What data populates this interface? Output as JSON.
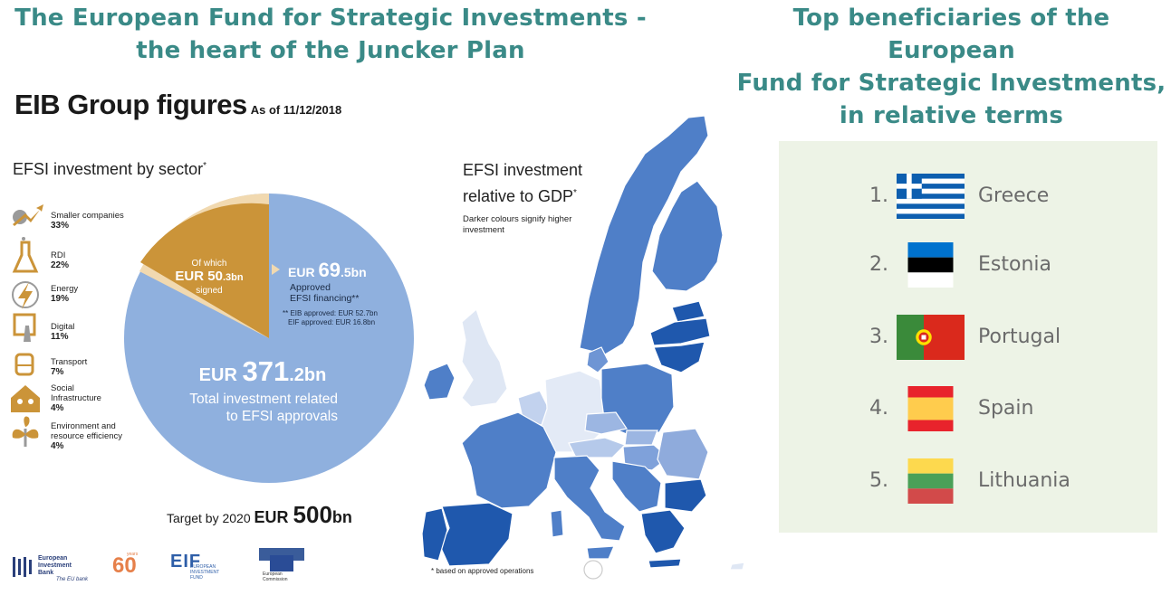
{
  "headings": {
    "left": [
      "The European Fund for Strategic Investments -",
      "the heart of the Juncker Plan"
    ],
    "right": [
      "Top beneficiaries of the European",
      "Fund for Strategic Investments,",
      "in relative terms"
    ]
  },
  "eib": {
    "title": "EIB Group figures",
    "as_of": "As of 11/12/2018"
  },
  "sector": {
    "title": "EFSI investment by sector",
    "title_mark": "*",
    "items": [
      {
        "label": "Smaller companies",
        "pct": "33%",
        "icon": "growth-arrow-icon"
      },
      {
        "label": "RDI",
        "pct": "22%",
        "icon": "flask-icon"
      },
      {
        "label": "Energy",
        "pct": "19%",
        "icon": "lightning-icon"
      },
      {
        "label": "Digital",
        "pct": "11%",
        "icon": "touch-screen-icon"
      },
      {
        "label": "Transport",
        "pct": "7%",
        "icon": "train-icon"
      },
      {
        "label": "Social",
        "label2": "Infrastructure",
        "pct": "4%",
        "icon": "family-house-icon"
      },
      {
        "label": "Environment and",
        "label2": "resource efficiency",
        "pct": "4%",
        "icon": "plant-icon"
      }
    ]
  },
  "pie": {
    "total_prefix": "EUR ",
    "total_num": "371",
    "total_unit": ".2bn",
    "total_desc1": "Total investment related",
    "total_desc2": "to EFSI approvals",
    "approved_prefix": "EUR ",
    "approved_num": "69",
    "approved_unit": ".5bn",
    "approved_desc1": "Approved",
    "approved_desc2": "EFSI financing**",
    "approved_detail1": "** EIB approved: EUR 52.7bn",
    "approved_detail2": "EIF approved: EUR 16.8bn",
    "signed_of": "Of which",
    "signed_prefix": "EUR ",
    "signed_num": "50",
    "signed_unit": ".3bn",
    "signed_label": "signed",
    "colors": {
      "total": "#8fb0de",
      "approved": "#f1d9b0",
      "signed": "#cb9439"
    }
  },
  "target": {
    "prefix": "Target by 2020 ",
    "eur": "EUR ",
    "num": "500",
    "unit": "bn"
  },
  "map": {
    "title1": "EFSI investment",
    "title2": "relative to GDP",
    "title_mark": "*",
    "note1": "Darker colours signify higher",
    "note2": "investment",
    "footnote": "* based on approved operations"
  },
  "logos": {
    "eib": [
      "European",
      "Investment",
      "Bank"
    ],
    "eib_tagline": "The EU bank",
    "sixty": "60",
    "sixty_years": "years",
    "eif_mark": "EIF",
    "eif": [
      "EUROPEAN",
      "INVESTMENT",
      "FUND"
    ],
    "ec": [
      "European",
      "Commission"
    ]
  },
  "beneficiaries": [
    {
      "rank": "1.",
      "country": "Greece",
      "flag": "greece-flag"
    },
    {
      "rank": "2.",
      "country": "Estonia",
      "flag": "estonia-flag"
    },
    {
      "rank": "3.",
      "country": "Portugal",
      "flag": "portugal-flag"
    },
    {
      "rank": "4.",
      "country": "Spain",
      "flag": "spain-flag"
    },
    {
      "rank": "5.",
      "country": "Lithuania",
      "flag": "lithuania-flag"
    }
  ]
}
